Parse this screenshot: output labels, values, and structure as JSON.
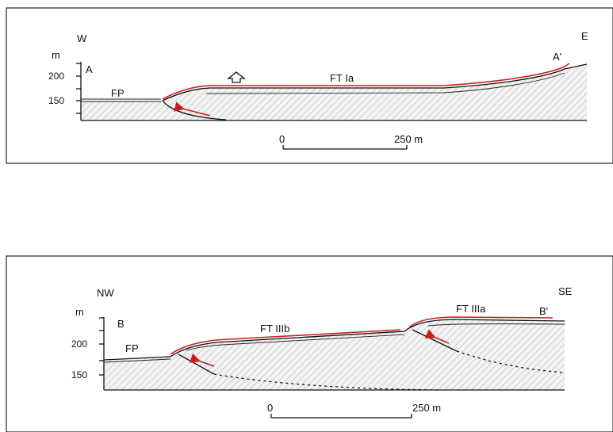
{
  "panels": [
    {
      "dir_left": "W",
      "dir_right": "E",
      "axis_unit": "m",
      "point_left": "A",
      "point_right": "A'",
      "ticks": [
        "200",
        "150"
      ],
      "labels": [
        "FP",
        "FT Ia"
      ],
      "scale": {
        "start": "0",
        "end": "250 m"
      }
    },
    {
      "dir_left": "NW",
      "dir_right": "SE",
      "axis_unit": "m",
      "point_left": "B",
      "point_right": "B'",
      "ticks": [
        "200",
        "150"
      ],
      "labels": [
        "FP",
        "FT IIIb",
        "FT IIIa"
      ],
      "scale": {
        "start": "0",
        "end": "250 m"
      }
    }
  ],
  "colors": {
    "fault_trace": "#c8201e",
    "ink": "#111111",
    "hatch": "#8a8a8a"
  }
}
